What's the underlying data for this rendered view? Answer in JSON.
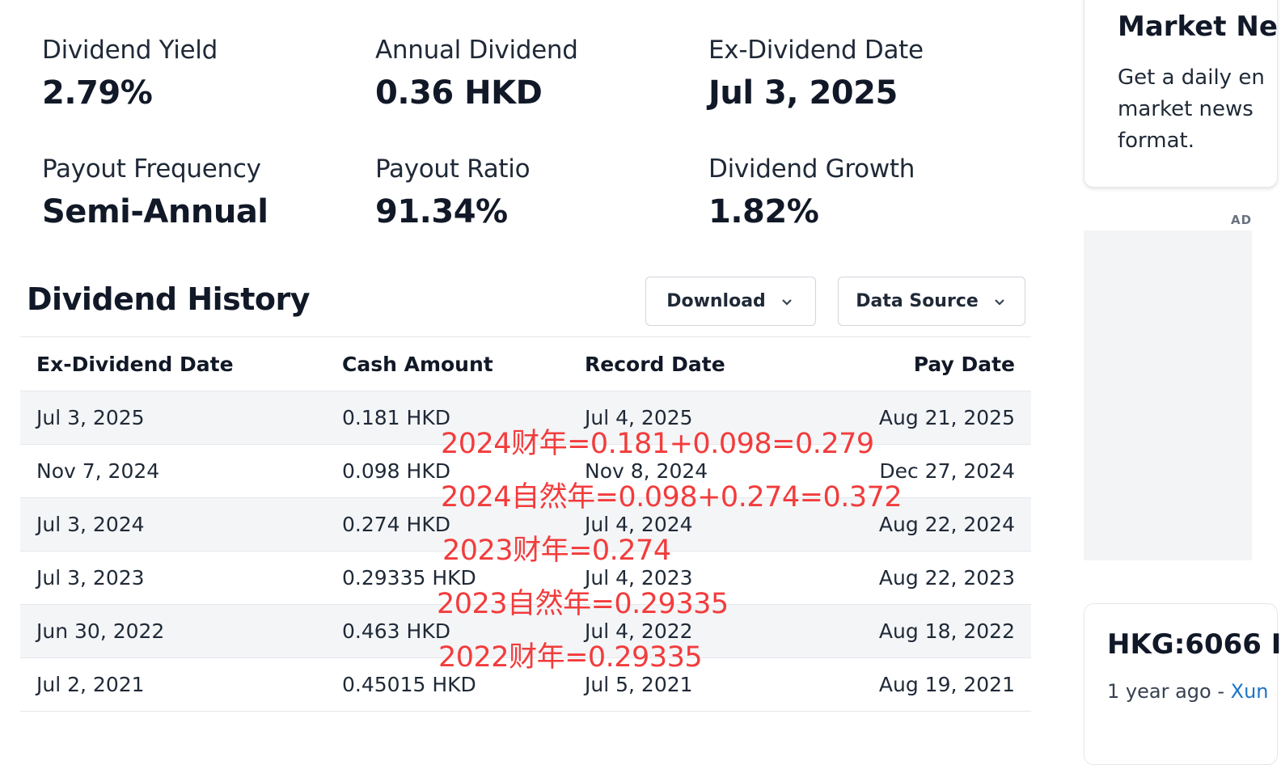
{
  "stats": [
    {
      "label": "Dividend Yield",
      "value": "2.79%"
    },
    {
      "label": "Annual Dividend",
      "value": "0.36 HKD"
    },
    {
      "label": "Ex-Dividend Date",
      "value": "Jul 3, 2025"
    },
    {
      "label": "Payout Frequency",
      "value": "Semi-Annual"
    },
    {
      "label": "Payout Ratio",
      "value": "91.34%"
    },
    {
      "label": "Dividend Growth",
      "value": "1.82%"
    }
  ],
  "history": {
    "title": "Dividend History",
    "download_label": "Download",
    "source_label": "Data Source",
    "columns": [
      "Ex-Dividend Date",
      "Cash Amount",
      "Record Date",
      "Pay Date"
    ],
    "rows": [
      [
        "Jul 3, 2025",
        "0.181 HKD",
        "Jul 4, 2025",
        "Aug 21, 2025"
      ],
      [
        "Nov 7, 2024",
        "0.098 HKD",
        "Nov 8, 2024",
        "Dec 27, 2024"
      ],
      [
        "Jul 3, 2024",
        "0.274 HKD",
        "Jul 4, 2024",
        "Aug 22, 2024"
      ],
      [
        "Jul 3, 2023",
        "0.29335 HKD",
        "Jul 4, 2023",
        "Aug 22, 2023"
      ],
      [
        "Jun 30, 2022",
        "0.463 HKD",
        "Jul 4, 2022",
        "Aug 18, 2022"
      ],
      [
        "Jul 2, 2021",
        "0.45015 HKD",
        "Jul 5, 2021",
        "Aug 19, 2021"
      ]
    ]
  },
  "annotations": [
    "2024财年=0.181+0.098=0.279",
    "2024自然年=0.098+0.274=0.372",
    "2023财年=0.274",
    "2023自然年=0.29335",
    "2022财年=0.29335"
  ],
  "sidebar": {
    "news_title": "Market Ne",
    "news_desc": "Get a daily en market news format.",
    "ad_label": "AD",
    "article_title": "HKG:6066 I",
    "article_time": "1 year ago - ",
    "article_source": "Xun"
  },
  "colors": {
    "annotation": "#f23c3c",
    "link": "#1a73c8"
  }
}
